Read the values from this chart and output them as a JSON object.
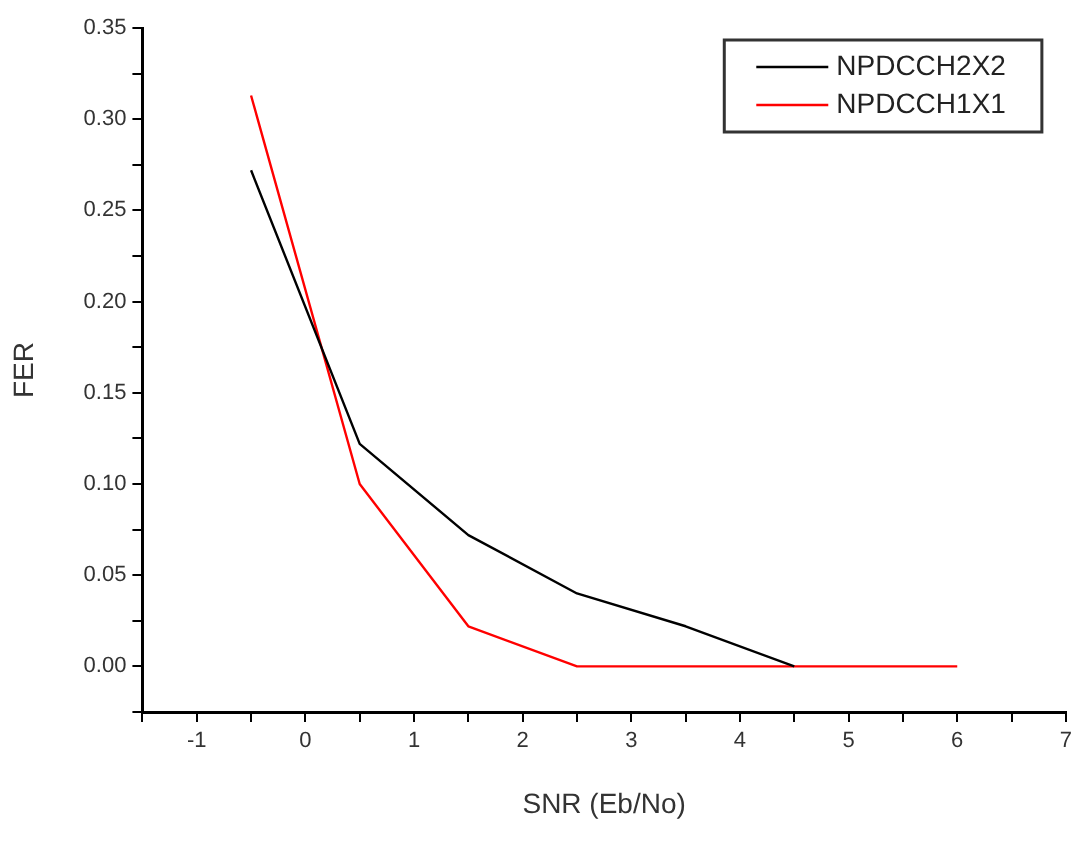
{
  "chart_data": {
    "type": "line",
    "xlabel": "SNR (Eb/No)",
    "ylabel": "FER",
    "series": [
      {
        "name": "NPDCCH2X2",
        "color": "#000000",
        "x": [
          -0.5,
          0.5,
          1.5,
          2.5,
          3.5,
          4.5
        ],
        "values": [
          0.272,
          0.122,
          0.072,
          0.04,
          0.022,
          0
        ]
      },
      {
        "name": "NPDCCH1X1",
        "color": "#ff0000",
        "x": [
          -0.5,
          0.5,
          1.5,
          2.5,
          3.5,
          4.5,
          6
        ],
        "values": [
          0.313,
          0.1,
          0.022,
          0,
          0,
          0,
          0
        ]
      }
    ],
    "xlim": [
      -1.5,
      7
    ],
    "xticks": [
      {
        "value": -1.5,
        "label": null
      },
      -1,
      {
        "value": -0.5,
        "label": null
      },
      0,
      {
        "value": 0.5,
        "label": null
      },
      1,
      {
        "value": 1.5,
        "label": null
      },
      2,
      {
        "value": 2.5,
        "label": null
      },
      3,
      {
        "value": 3.5,
        "label": null
      },
      4,
      {
        "value": 4.5,
        "label": null
      },
      5,
      {
        "value": 5.5,
        "label": null
      },
      6,
      {
        "value": 6.5,
        "label": null
      },
      7
    ],
    "ylim": [
      -0.025,
      0.35
    ],
    "yticks": [
      {
        "value": -0.025,
        "label": null
      },
      {
        "value": 0,
        "label": "0.00"
      },
      {
        "value": 0.025,
        "label": null
      },
      {
        "value": 0.05,
        "label": "0.05"
      },
      {
        "value": 0.075,
        "label": null
      },
      {
        "value": 0.1,
        "label": "0.10"
      },
      {
        "value": 0.125,
        "label": null
      },
      {
        "value": 0.15,
        "label": "0.15"
      },
      {
        "value": 0.175,
        "label": null
      },
      {
        "value": 0.2,
        "label": "0.20"
      },
      {
        "value": 0.225,
        "label": null
      },
      {
        "value": 0.25,
        "label": "0.25"
      },
      {
        "value": 0.275,
        "label": null
      },
      {
        "value": 0.3,
        "label": "0.30"
      },
      {
        "value": 0.325,
        "label": null
      },
      {
        "value": 0.35,
        "label": "0.35"
      }
    ],
    "grid": false,
    "legend": "top right",
    "marker": "none",
    "line_style": "solid"
  }
}
